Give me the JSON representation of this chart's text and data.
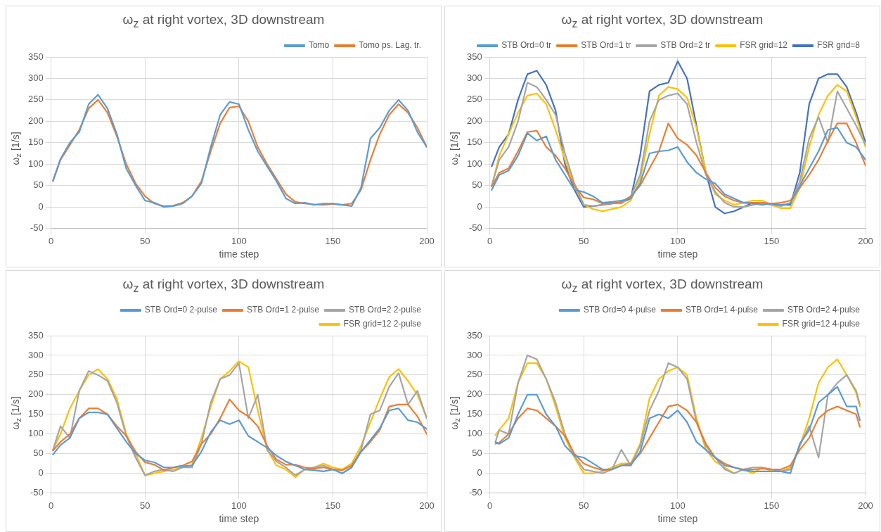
{
  "chart_data": [
    {
      "type": "line",
      "title": "ω$_{z}$ at right vortex, 3D downstream",
      "xlabel": "time step",
      "ylabel": "ω$_{z}$ [1/s]",
      "xlim": [
        0,
        200
      ],
      "xticks": [
        0,
        50,
        100,
        150,
        200
      ],
      "ylim": [
        -50,
        350
      ],
      "yticks": [
        -50,
        0,
        50,
        100,
        150,
        200,
        250,
        300,
        350
      ],
      "grid": true,
      "legend": "top right",
      "marker": "none",
      "line_style": "solid",
      "x": [
        1,
        5,
        10,
        15,
        20,
        25,
        30,
        35,
        40,
        45,
        50,
        55,
        60,
        65,
        70,
        75,
        80,
        85,
        90,
        95,
        100,
        105,
        110,
        115,
        120,
        125,
        130,
        135,
        140,
        145,
        150,
        155,
        160,
        165,
        170,
        175,
        180,
        185,
        190,
        195,
        200
      ],
      "series": [
        {
          "name": "Tomo",
          "color": "#5b9bd5",
          "values": [
            62,
            112,
            150,
            175,
            240,
            262,
            230,
            170,
            90,
            50,
            15,
            10,
            0,
            2,
            8,
            25,
            55,
            140,
            215,
            245,
            240,
            180,
            130,
            95,
            60,
            20,
            8,
            10,
            5,
            8,
            8,
            5,
            2,
            45,
            160,
            185,
            225,
            250,
            225,
            175,
            140
          ]
        },
        {
          "name": "Tomo ps. Lag. tr.",
          "color": "#ed7d31",
          "values": [
            60,
            110,
            145,
            180,
            230,
            250,
            220,
            165,
            100,
            55,
            25,
            8,
            2,
            3,
            10,
            25,
            60,
            130,
            195,
            232,
            235,
            200,
            140,
            100,
            65,
            30,
            12,
            8,
            6,
            5,
            7,
            5,
            8,
            40,
            110,
            170,
            215,
            240,
            220,
            185,
            140
          ]
        }
      ]
    },
    {
      "type": "line",
      "title": "ω$_{z}$ at right vortex, 3D downstream",
      "xlabel": "time step",
      "ylabel": "ω$_{z}$ [1/s]",
      "xlim": [
        0,
        200
      ],
      "xticks": [
        0,
        50,
        100,
        150,
        200
      ],
      "ylim": [
        -50,
        350
      ],
      "yticks": [
        -50,
        0,
        50,
        100,
        150,
        200,
        250,
        300,
        350
      ],
      "grid": true,
      "legend": "top right",
      "marker": "none",
      "line_style": "solid",
      "x": [
        1,
        5,
        10,
        15,
        20,
        25,
        30,
        35,
        40,
        45,
        50,
        55,
        60,
        65,
        70,
        75,
        80,
        85,
        90,
        95,
        100,
        105,
        110,
        115,
        120,
        125,
        130,
        135,
        140,
        145,
        150,
        155,
        160,
        165,
        170,
        175,
        180,
        185,
        190,
        195,
        200
      ],
      "series": [
        {
          "name": "STB Ord=0 tr",
          "color": "#5b9bd5",
          "values": [
            40,
            75,
            85,
            120,
            172,
            155,
            165,
            110,
            75,
            40,
            35,
            25,
            10,
            12,
            15,
            20,
            55,
            125,
            130,
            132,
            140,
            105,
            80,
            65,
            55,
            30,
            20,
            10,
            8,
            5,
            8,
            5,
            8,
            50,
            90,
            130,
            180,
            185,
            150,
            140,
            110
          ]
        },
        {
          "name": "STB Ord=1 tr",
          "color": "#ed7d31",
          "values": [
            48,
            80,
            90,
            130,
            175,
            178,
            140,
            120,
            90,
            50,
            22,
            18,
            8,
            8,
            12,
            25,
            50,
            90,
            130,
            195,
            160,
            145,
            120,
            80,
            45,
            25,
            15,
            10,
            10,
            10,
            8,
            10,
            15,
            45,
            75,
            110,
            155,
            195,
            195,
            150,
            97
          ]
        },
        {
          "name": "STB Ord=2 tr",
          "color": "#a5a5a5",
          "values": [
            50,
            110,
            140,
            200,
            290,
            280,
            250,
            215,
            125,
            55,
            5,
            2,
            5,
            10,
            8,
            25,
            75,
            200,
            250,
            260,
            265,
            240,
            150,
            75,
            35,
            10,
            0,
            0,
            5,
            10,
            5,
            2,
            10,
            60,
            160,
            210,
            150,
            270,
            230,
            190,
            145
          ]
        },
        {
          "name": "FSR grid=12",
          "color": "#ffc000",
          "values": [
            48,
            120,
            170,
            220,
            260,
            265,
            240,
            180,
            110,
            50,
            5,
            -5,
            -10,
            -5,
            0,
            15,
            65,
            170,
            260,
            280,
            275,
            255,
            185,
            80,
            30,
            15,
            5,
            10,
            15,
            15,
            5,
            -3,
            -3,
            45,
            140,
            215,
            260,
            285,
            270,
            210,
            140
          ]
        },
        {
          "name": "FSR grid=8",
          "color": "#4472c4",
          "values": [
            95,
            140,
            170,
            250,
            310,
            318,
            285,
            225,
            100,
            40,
            0,
            2,
            5,
            8,
            10,
            20,
            120,
            270,
            285,
            290,
            340,
            300,
            190,
            80,
            0,
            -15,
            -10,
            0,
            10,
            10,
            5,
            5,
            5,
            80,
            240,
            300,
            310,
            310,
            280,
            220,
            150
          ]
        }
      ]
    },
    {
      "type": "line",
      "title": "ω$_{z}$ at right vortex, 3D downstream",
      "xlabel": "time step",
      "ylabel": "ω$_{z}$ [1/s]",
      "xlim": [
        0,
        200
      ],
      "xticks": [
        0,
        50,
        100,
        150,
        200
      ],
      "ylim": [
        -50,
        350
      ],
      "yticks": [
        -50,
        0,
        50,
        100,
        150,
        200,
        250,
        300,
        350
      ],
      "grid": true,
      "legend": "top right",
      "marker": "none",
      "line_style": "solid",
      "x": [
        1,
        5,
        10,
        15,
        20,
        25,
        30,
        35,
        40,
        45,
        50,
        55,
        60,
        65,
        70,
        75,
        80,
        85,
        90,
        95,
        100,
        105,
        110,
        115,
        120,
        125,
        130,
        135,
        140,
        145,
        150,
        155,
        160,
        165,
        170,
        175,
        180,
        185,
        190,
        195,
        200
      ],
      "series": [
        {
          "name": "STB Ord=0 2-pulse",
          "color": "#5b9bd5",
          "values": [
            48,
            72,
            90,
            140,
            155,
            155,
            150,
            115,
            80,
            50,
            33,
            28,
            15,
            15,
            18,
            20,
            55,
            105,
            135,
            125,
            135,
            95,
            80,
            65,
            45,
            30,
            20,
            10,
            8,
            5,
            10,
            0,
            15,
            55,
            85,
            115,
            160,
            165,
            135,
            130,
            113
          ]
        },
        {
          "name": "STB Ord=1 2-pulse",
          "color": "#ed7d31",
          "values": [
            58,
            80,
            100,
            140,
            165,
            165,
            150,
            120,
            95,
            55,
            28,
            22,
            8,
            15,
            20,
            30,
            75,
            100,
            140,
            188,
            160,
            145,
            120,
            70,
            35,
            22,
            22,
            15,
            12,
            15,
            10,
            8,
            20,
            55,
            80,
            110,
            170,
            175,
            175,
            145,
            100
          ]
        },
        {
          "name": "STB Ord=2 2-pulse",
          "color": "#a5a5a5",
          "values": [
            60,
            120,
            90,
            210,
            260,
            250,
            235,
            180,
            95,
            40,
            -5,
            5,
            10,
            5,
            15,
            15,
            75,
            180,
            240,
            250,
            280,
            140,
            200,
            60,
            30,
            15,
            -5,
            10,
            15,
            20,
            10,
            0,
            15,
            60,
            150,
            160,
            220,
            255,
            175,
            210,
            140
          ]
        },
        {
          "name": "FSR grid=12 2-pulse",
          "color": "#ffc000",
          "values": [
            60,
            100,
            165,
            210,
            250,
            265,
            240,
            190,
            100,
            50,
            -5,
            0,
            5,
            10,
            15,
            20,
            90,
            170,
            240,
            260,
            285,
            270,
            160,
            60,
            20,
            10,
            -10,
            10,
            15,
            25,
            15,
            10,
            25,
            70,
            130,
            190,
            245,
            265,
            235,
            200,
            140
          ]
        }
      ]
    },
    {
      "type": "line",
      "title": "ω$_{z}$ at right vortex, 3D downstream",
      "xlabel": "time step",
      "ylabel": "ω$_{z}$ [1/s]",
      "xlim": [
        0,
        200
      ],
      "xticks": [
        0,
        50,
        100,
        150,
        200
      ],
      "ylim": [
        -50,
        350
      ],
      "yticks": [
        -50,
        0,
        50,
        100,
        150,
        200,
        250,
        300,
        350
      ],
      "grid": true,
      "legend": "top right",
      "marker": "none",
      "line_style": "solid",
      "x": [
        3,
        5,
        10,
        15,
        20,
        25,
        30,
        35,
        40,
        45,
        50,
        55,
        60,
        65,
        70,
        75,
        80,
        85,
        90,
        95,
        100,
        105,
        110,
        115,
        120,
        125,
        130,
        135,
        140,
        145,
        150,
        155,
        160,
        165,
        170,
        175,
        180,
        185,
        190,
        195,
        197
      ],
      "series": [
        {
          "name": "STB Ord=0 4-pulse",
          "color": "#5b9bd5",
          "values": [
            80,
            75,
            90,
            150,
            200,
            200,
            150,
            120,
            70,
            45,
            40,
            25,
            10,
            10,
            20,
            20,
            55,
            140,
            150,
            140,
            160,
            130,
            80,
            60,
            40,
            20,
            15,
            8,
            5,
            5,
            5,
            5,
            0,
            75,
            110,
            180,
            200,
            220,
            170,
            170,
            135
          ]
        },
        {
          "name": "STB Ord=1 4-pulse",
          "color": "#ed7d31",
          "values": [
            75,
            78,
            100,
            140,
            165,
            160,
            140,
            120,
            95,
            50,
            25,
            15,
            8,
            10,
            20,
            25,
            50,
            90,
            130,
            170,
            175,
            160,
            130,
            75,
            40,
            25,
            15,
            10,
            10,
            12,
            10,
            10,
            20,
            60,
            90,
            140,
            160,
            170,
            160,
            150,
            118
          ]
        },
        {
          "name": "STB Ord=2 4-pulse",
          "color": "#a5a5a5",
          "values": [
            80,
            110,
            100,
            230,
            300,
            290,
            240,
            180,
            100,
            45,
            10,
            5,
            0,
            10,
            60,
            20,
            70,
            160,
            210,
            280,
            270,
            240,
            130,
            70,
            40,
            10,
            0,
            10,
            15,
            15,
            10,
            5,
            10,
            70,
            120,
            40,
            200,
            230,
            250,
            210,
            175
          ]
        },
        {
          "name": "FSR grid=12 4-pulse",
          "color": "#ffc000",
          "values": [
            97,
            110,
            140,
            230,
            280,
            280,
            240,
            170,
            90,
            40,
            0,
            0,
            5,
            15,
            25,
            25,
            75,
            190,
            240,
            260,
            270,
            250,
            140,
            60,
            30,
            15,
            0,
            10,
            0,
            15,
            5,
            5,
            15,
            70,
            140,
            230,
            270,
            290,
            250,
            205,
            170
          ]
        }
      ]
    }
  ]
}
